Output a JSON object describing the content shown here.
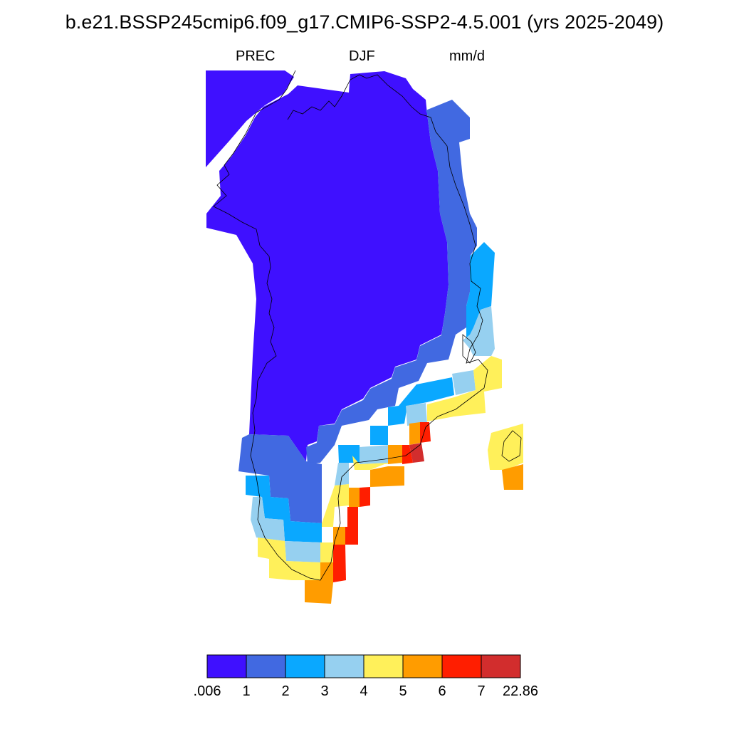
{
  "figure": {
    "title": "b.e21.BSSP245cmip6.f09_g17.CMIP6-SSP2-4.5.001 (yrs 2025-2049)",
    "variable": "PREC",
    "season": "DJF",
    "units": "mm/d"
  },
  "legend": {
    "colors": [
      "#3f10ff",
      "#4169e1",
      "#0aa8ff",
      "#96d0f0",
      "#fff05a",
      "#ff9c00",
      "#ff1e00",
      "#d22d2d"
    ],
    "labels": [
      ".006",
      "1",
      "2",
      "3",
      "4",
      "5",
      "6",
      "7",
      "22.86"
    ]
  },
  "map": {
    "region": "Greenland",
    "field": "DJF mean precipitation",
    "coastline_color": "#000000"
  }
}
